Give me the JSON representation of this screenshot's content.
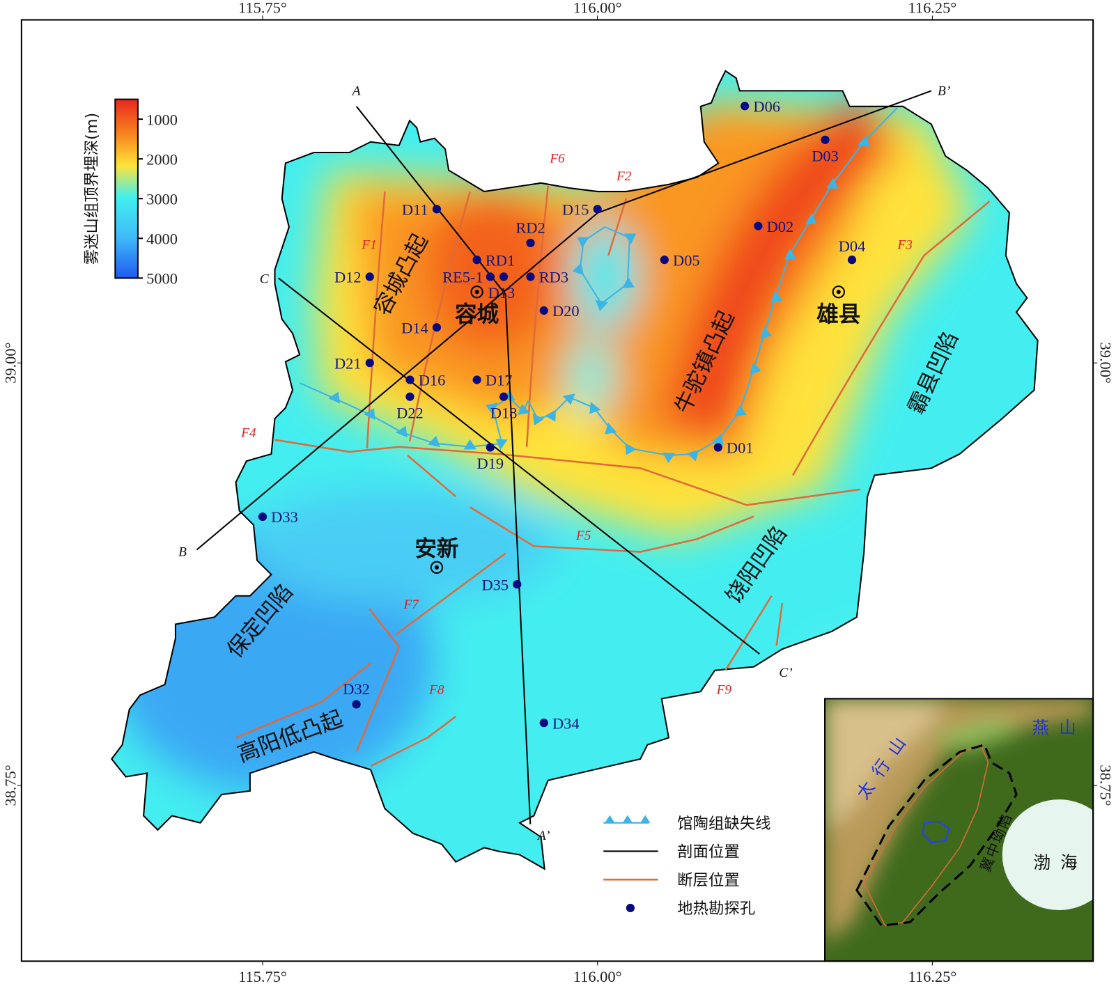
{
  "axes": {
    "xlim": [
      115.57,
      116.37
    ],
    "ylim": [
      38.646,
      39.203
    ],
    "xticks": [
      {
        "value": 115.75,
        "label": "115.75°"
      },
      {
        "value": 116.0,
        "label": "116.00°"
      },
      {
        "value": 116.25,
        "label": "116.25°"
      }
    ],
    "yticks": [
      {
        "value": 39.0,
        "label": "39.00°"
      },
      {
        "value": 38.75,
        "label": "38.75°"
      }
    ]
  },
  "colorbar": {
    "title": "雾迷山组顶界埋深(m)",
    "clim": [
      500,
      5000
    ],
    "ticks": [
      1000,
      2000,
      3000,
      4000,
      5000
    ]
  },
  "wells": [
    {
      "name": "D06",
      "lon": 116.11,
      "lat": 39.152
    },
    {
      "name": "D03",
      "lon": 116.17,
      "lat": 39.132
    },
    {
      "name": "D02",
      "lon": 116.12,
      "lat": 39.081
    },
    {
      "name": "D04",
      "lon": 116.19,
      "lat": 39.061
    },
    {
      "name": "D05",
      "lon": 116.05,
      "lat": 39.061
    },
    {
      "name": "D15",
      "lon": 116.0,
      "lat": 39.091
    },
    {
      "name": "D11",
      "lon": 115.88,
      "lat": 39.091
    },
    {
      "name": "RD2",
      "lon": 115.95,
      "lat": 39.071
    },
    {
      "name": "RD1",
      "lon": 115.91,
      "lat": 39.061
    },
    {
      "name": "RE5-1",
      "lon": 115.92,
      "lat": 39.051
    },
    {
      "name": "RD3",
      "lon": 115.95,
      "lat": 39.051
    },
    {
      "name": "D12",
      "lon": 115.83,
      "lat": 39.051
    },
    {
      "name": "D13",
      "lon": 115.93,
      "lat": 39.051
    },
    {
      "name": "D20",
      "lon": 115.96,
      "lat": 39.031
    },
    {
      "name": "D14",
      "lon": 115.88,
      "lat": 39.021
    },
    {
      "name": "D21",
      "lon": 115.83,
      "lat": 39.0
    },
    {
      "name": "D16",
      "lon": 115.86,
      "lat": 38.99
    },
    {
      "name": "D17",
      "lon": 115.91,
      "lat": 38.99
    },
    {
      "name": "D18",
      "lon": 115.93,
      "lat": 38.98
    },
    {
      "name": "D22",
      "lon": 115.86,
      "lat": 38.98
    },
    {
      "name": "D01",
      "lon": 116.09,
      "lat": 38.95
    },
    {
      "name": "D19",
      "lon": 115.92,
      "lat": 38.95
    },
    {
      "name": "D33",
      "lon": 115.75,
      "lat": 38.909
    },
    {
      "name": "D35",
      "lon": 115.94,
      "lat": 38.869
    },
    {
      "name": "D32",
      "lon": 115.82,
      "lat": 38.798
    },
    {
      "name": "D34",
      "lon": 115.96,
      "lat": 38.787
    }
  ],
  "cities": [
    {
      "name": "容城",
      "lon": 115.91,
      "lat": 39.042
    },
    {
      "name": "雄县",
      "lon": 116.18,
      "lat": 39.042
    },
    {
      "name": "安新",
      "lon": 115.88,
      "lat": 38.879
    }
  ],
  "structures": [
    "容城凸起",
    "牛驼镇凸起",
    "霸县凹陷",
    "饶阳凹陷",
    "保定凹陷",
    "高阳低凸起"
  ],
  "faults": [
    "F1",
    "F2",
    "F3",
    "F4",
    "F5",
    "F6",
    "F7",
    "F8",
    "F9"
  ],
  "sections": [
    "A",
    "A’",
    "B",
    "B’",
    "C",
    "C’"
  ],
  "legend": [
    "馆陶组缺失线",
    "剖面位置",
    "断层位置",
    "地热勘探孔"
  ],
  "inset": {
    "labels": [
      "太行山",
      "燕山",
      "渤海",
      "冀中坳陷"
    ]
  }
}
